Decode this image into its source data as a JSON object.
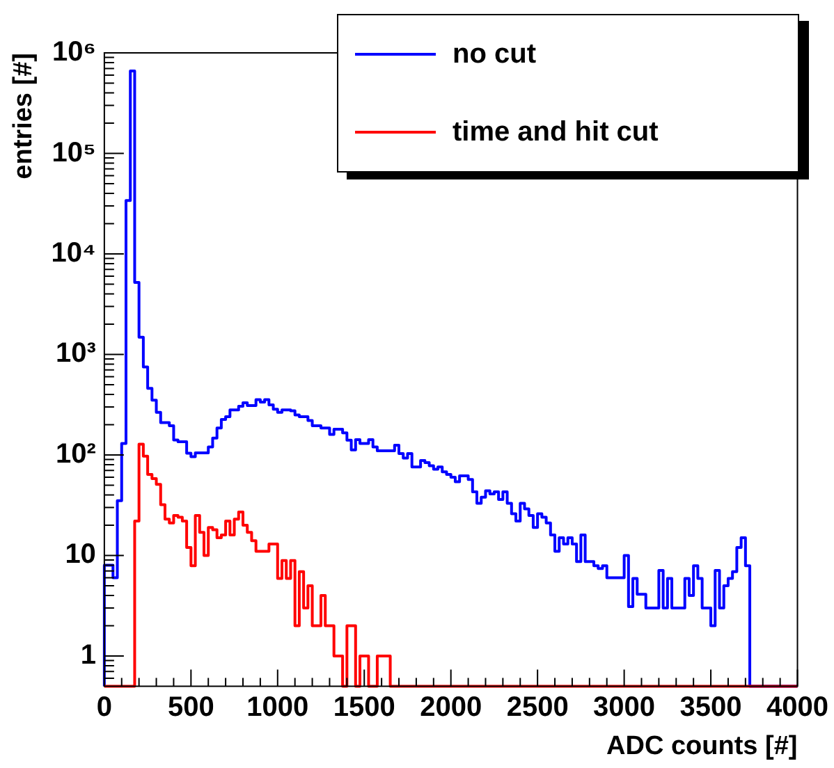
{
  "chart_data": {
    "type": "histogram",
    "xlabel": "ADC counts [#]",
    "ylabel": "entries [#]",
    "legend": "top right",
    "log": "y",
    "xlim": [
      0,
      4000
    ],
    "ylim": [
      0.5,
      1000000
    ],
    "xticks": [
      0,
      {
        "value": 100,
        "label": null
      },
      {
        "value": 200,
        "label": null
      },
      {
        "value": 300,
        "label": null
      },
      {
        "value": 400,
        "label": null
      },
      500,
      {
        "value": 600,
        "label": null
      },
      {
        "value": 700,
        "label": null
      },
      {
        "value": 800,
        "label": null
      },
      {
        "value": 900,
        "label": null
      },
      1000,
      {
        "value": 1100,
        "label": null
      },
      {
        "value": 1200,
        "label": null
      },
      {
        "value": 1300,
        "label": null
      },
      {
        "value": 1400,
        "label": null
      },
      1500,
      {
        "value": 1600,
        "label": null
      },
      {
        "value": 1700,
        "label": null
      },
      {
        "value": 1800,
        "label": null
      },
      {
        "value": 1900,
        "label": null
      },
      2000,
      {
        "value": 2100,
        "label": null
      },
      {
        "value": 2200,
        "label": null
      },
      {
        "value": 2300,
        "label": null
      },
      {
        "value": 2400,
        "label": null
      },
      2500,
      {
        "value": 2600,
        "label": null
      },
      {
        "value": 2700,
        "label": null
      },
      {
        "value": 2800,
        "label": null
      },
      {
        "value": 2900,
        "label": null
      },
      3000,
      {
        "value": 3100,
        "label": null
      },
      {
        "value": 3200,
        "label": null
      },
      {
        "value": 3300,
        "label": null
      },
      {
        "value": 3400,
        "label": null
      },
      3500,
      {
        "value": 3600,
        "label": null
      },
      {
        "value": 3700,
        "label": null
      },
      {
        "value": 3800,
        "label": null
      },
      {
        "value": 3900,
        "label": null
      },
      4000
    ],
    "yticks": [
      {
        "value": 0.6,
        "label": null
      },
      {
        "value": 0.7,
        "label": null
      },
      {
        "value": 0.8,
        "label": null
      },
      {
        "value": 0.9,
        "label": null
      },
      1,
      {
        "value": 2,
        "label": null
      },
      {
        "value": 3,
        "label": null
      },
      {
        "value": 4,
        "label": null
      },
      {
        "value": 5,
        "label": null
      },
      {
        "value": 6,
        "label": null
      },
      {
        "value": 7,
        "label": null
      },
      {
        "value": 8,
        "label": null
      },
      {
        "value": 9,
        "label": null
      },
      10,
      {
        "value": 20,
        "label": null
      },
      {
        "value": 30,
        "label": null
      },
      {
        "value": 40,
        "label": null
      },
      {
        "value": 50,
        "label": null
      },
      {
        "value": 60,
        "label": null
      },
      {
        "value": 70,
        "label": null
      },
      {
        "value": 80,
        "label": null
      },
      {
        "value": 90,
        "label": null
      },
      {
        "value": 100,
        "label": "10²"
      },
      {
        "value": 200,
        "label": null
      },
      {
        "value": 300,
        "label": null
      },
      {
        "value": 400,
        "label": null
      },
      {
        "value": 500,
        "label": null
      },
      {
        "value": 600,
        "label": null
      },
      {
        "value": 700,
        "label": null
      },
      {
        "value": 800,
        "label": null
      },
      {
        "value": 900,
        "label": null
      },
      {
        "value": 1000,
        "label": "10³"
      },
      {
        "value": 2000,
        "label": null
      },
      {
        "value": 3000,
        "label": null
      },
      {
        "value": 4000,
        "label": null
      },
      {
        "value": 5000,
        "label": null
      },
      {
        "value": 6000,
        "label": null
      },
      {
        "value": 7000,
        "label": null
      },
      {
        "value": 8000,
        "label": null
      },
      {
        "value": 9000,
        "label": null
      },
      {
        "value": 10000,
        "label": "10⁴"
      },
      {
        "value": 20000,
        "label": null
      },
      {
        "value": 30000,
        "label": null
      },
      {
        "value": 40000,
        "label": null
      },
      {
        "value": 50000,
        "label": null
      },
      {
        "value": 60000,
        "label": null
      },
      {
        "value": 70000,
        "label": null
      },
      {
        "value": 80000,
        "label": null
      },
      {
        "value": 90000,
        "label": null
      },
      {
        "value": 100000,
        "label": "10⁵"
      },
      {
        "value": 200000,
        "label": null
      },
      {
        "value": 300000,
        "label": null
      },
      {
        "value": 400000,
        "label": null
      },
      {
        "value": 500000,
        "label": null
      },
      {
        "value": 600000,
        "label": null
      },
      {
        "value": 700000,
        "label": null
      },
      {
        "value": 800000,
        "label": null
      },
      {
        "value": 900000,
        "label": null
      },
      {
        "value": 1000000,
        "label": "10⁶"
      }
    ],
    "bins": [
      0,
      25,
      50,
      75,
      100,
      125,
      150,
      175,
      200,
      225,
      250,
      275,
      300,
      325,
      350,
      375,
      400,
      425,
      450,
      475,
      500,
      525,
      550,
      575,
      600,
      625,
      650,
      675,
      700,
      725,
      750,
      775,
      800,
      825,
      850,
      875,
      900,
      925,
      950,
      975,
      1000,
      1025,
      1050,
      1075,
      1100,
      1125,
      1150,
      1175,
      1200,
      1225,
      1250,
      1275,
      1300,
      1325,
      1350,
      1375,
      1400,
      1425,
      1450,
      1475,
      1500,
      1525,
      1550,
      1575,
      1600,
      1625,
      1650,
      1675,
      1700,
      1725,
      1750,
      1775,
      1800,
      1825,
      1850,
      1875,
      1900,
      1925,
      1950,
      1975,
      2000,
      2025,
      2050,
      2075,
      2100,
      2125,
      2150,
      2175,
      2200,
      2225,
      2250,
      2275,
      2300,
      2325,
      2350,
      2375,
      2400,
      2425,
      2450,
      2475,
      2500,
      2525,
      2550,
      2575,
      2600,
      2625,
      2650,
      2675,
      2700,
      2725,
      2750,
      2775,
      2800,
      2825,
      2850,
      2875,
      2900,
      2925,
      2950,
      2975,
      3000,
      3025,
      3050,
      3075,
      3100,
      3125,
      3150,
      3175,
      3200,
      3225,
      3250,
      3275,
      3300,
      3325,
      3350,
      3375,
      3400,
      3425,
      3450,
      3475,
      3500,
      3525,
      3550,
      3575,
      3600,
      3625,
      3650,
      3675,
      3700,
      3725,
      3750,
      3775,
      3800,
      3825,
      3850,
      3875,
      3900,
      3925,
      3950,
      3975,
      4000
    ],
    "series": [
      {
        "name": "no cut",
        "color": "#0000ff",
        "values": [
          8,
          8,
          6,
          35,
          130,
          34000,
          660000,
          5200,
          1480,
          750,
          460,
          350,
          265,
          210,
          210,
          195,
          141,
          135,
          135,
          104,
          96,
          105,
          105,
          105,
          120,
          147,
          185,
          225,
          240,
          280,
          280,
          305,
          330,
          310,
          310,
          355,
          335,
          355,
          315,
          285,
          265,
          280,
          280,
          275,
          250,
          240,
          240,
          220,
          195,
          195,
          185,
          185,
          160,
          180,
          180,
          166,
          140,
          112,
          142,
          130,
          130,
          142,
          120,
          110,
          110,
          110,
          110,
          125,
          103,
          93,
          103,
          76,
          76,
          88,
          84,
          78,
          72,
          76,
          68,
          64,
          60,
          54,
          62,
          62,
          57,
          43,
          33,
          38,
          44,
          41,
          43,
          36,
          43,
          33,
          26,
          22,
          33,
          29,
          25,
          19,
          26,
          24,
          21,
          16,
          11,
          15,
          13,
          15,
          13,
          8.7,
          16,
          8.7,
          8.7,
          7.9,
          7.4,
          7.9,
          6,
          6,
          6,
          6,
          10,
          3.1,
          5.9,
          4.1,
          4.1,
          3,
          3,
          3,
          7.1,
          3,
          5.9,
          3,
          3,
          3,
          5.9,
          4,
          7.9,
          5.9,
          3,
          3,
          2,
          7.1,
          3,
          5,
          5.9,
          6.9,
          12,
          15,
          7.9,
          null,
          null,
          null,
          null,
          null,
          null,
          null,
          null,
          null,
          null,
          null
        ]
      },
      {
        "name": "time and hit cut",
        "color": "#ff0000",
        "values": [
          null,
          null,
          null,
          null,
          null,
          null,
          null,
          22,
          128,
          97,
          64,
          58,
          51,
          32,
          23,
          21,
          25,
          24,
          22,
          12,
          7.9,
          25,
          17,
          10,
          19,
          18,
          15,
          16,
          22,
          16,
          23,
          27,
          20,
          17,
          14,
          11,
          11,
          11,
          13,
          13,
          5.9,
          8.9,
          5.9,
          8.9,
          2,
          6.9,
          3,
          5,
          2,
          2,
          4,
          2,
          2,
          1,
          1,
          null,
          2,
          2,
          null,
          1,
          1,
          null,
          null,
          1,
          1,
          1,
          null,
          null,
          null,
          null,
          null,
          null,
          null,
          null,
          null,
          null,
          null,
          null,
          null,
          null,
          null,
          null,
          null,
          null,
          null,
          null,
          null,
          null,
          null,
          null,
          null,
          null,
          null,
          null,
          null,
          null,
          null,
          null,
          null,
          null,
          null,
          null,
          null,
          null,
          null,
          null,
          null,
          null,
          null,
          null,
          null,
          null,
          null,
          null,
          null,
          null,
          null,
          null,
          null,
          null,
          null,
          null,
          null,
          null,
          null,
          null,
          null,
          null,
          null,
          null,
          null,
          null,
          null,
          null,
          null,
          null,
          null,
          null,
          null,
          null,
          null,
          null,
          null,
          null,
          null,
          null,
          null,
          null,
          null,
          null,
          null,
          null,
          null,
          null,
          null,
          null,
          null,
          null,
          null,
          null
        ]
      }
    ]
  }
}
